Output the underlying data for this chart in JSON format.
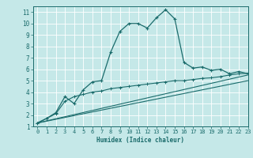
{
  "title": "",
  "xlabel": "Humidex (Indice chaleur)",
  "xlim": [
    -0.5,
    23
  ],
  "ylim": [
    1,
    11.5
  ],
  "yticks": [
    1,
    2,
    3,
    4,
    5,
    6,
    7,
    8,
    9,
    10,
    11
  ],
  "xticks": [
    0,
    1,
    2,
    3,
    4,
    5,
    6,
    7,
    8,
    9,
    10,
    11,
    12,
    13,
    14,
    15,
    16,
    17,
    18,
    19,
    20,
    21,
    22,
    23
  ],
  "bg_color": "#c5e8e8",
  "line_color": "#1a6b6b",
  "grid_color": "#e0f0f0",
  "line1_x": [
    0,
    1,
    2,
    3,
    4,
    5,
    6,
    7,
    8,
    9,
    10,
    11,
    12,
    13,
    14,
    15,
    16,
    17,
    18,
    19,
    20,
    21,
    22,
    23
  ],
  "line1_y": [
    1.3,
    1.7,
    2.2,
    3.6,
    3.0,
    4.2,
    4.9,
    5.0,
    7.5,
    9.3,
    10.0,
    10.0,
    9.6,
    10.5,
    11.2,
    10.4,
    6.6,
    6.1,
    6.2,
    5.9,
    6.0,
    5.6,
    5.8,
    5.6
  ],
  "line2_x": [
    0,
    1,
    2,
    3,
    4,
    5,
    6,
    7,
    8,
    9,
    10,
    11,
    12,
    13,
    14,
    15,
    16,
    17,
    18,
    19,
    20,
    21,
    22,
    23
  ],
  "line2_y": [
    1.3,
    1.7,
    2.1,
    3.2,
    3.6,
    3.8,
    4.0,
    4.1,
    4.3,
    4.4,
    4.5,
    4.6,
    4.7,
    4.8,
    4.9,
    5.0,
    5.0,
    5.1,
    5.2,
    5.25,
    5.35,
    5.5,
    5.6,
    5.65
  ],
  "line3_x": [
    0,
    23
  ],
  "line3_y": [
    1.3,
    5.5
  ],
  "line4_x": [
    0,
    23
  ],
  "line4_y": [
    1.3,
    5.0
  ]
}
